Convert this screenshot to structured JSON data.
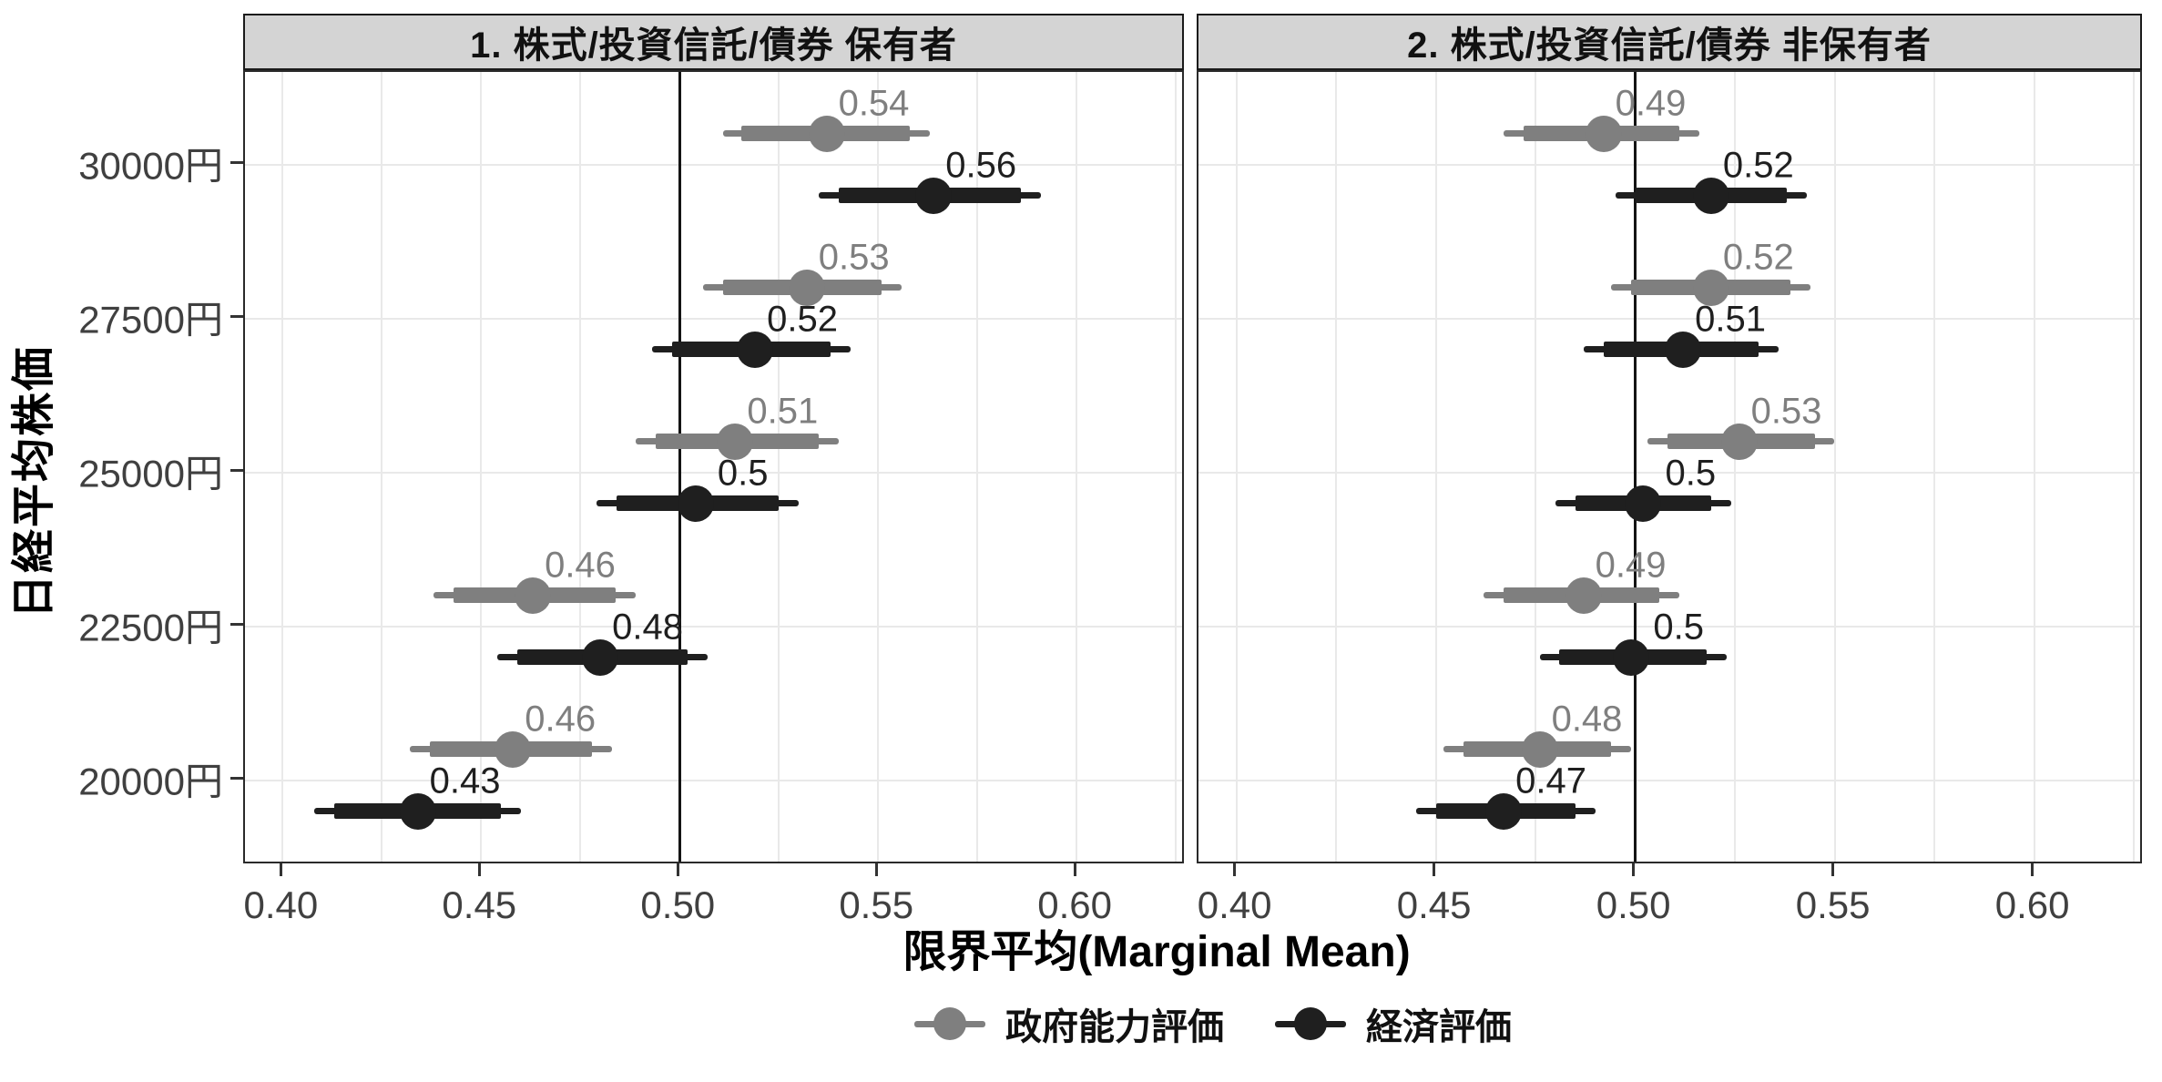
{
  "chart_data": {
    "type": "pointrange-dot-whisker",
    "x": {
      "label": "限界平均(Marginal Mean)",
      "ticks": [
        "0.40",
        "0.45",
        "0.50",
        "0.55",
        "0.60"
      ],
      "tick_values": [
        0.4,
        0.45,
        0.5,
        0.55,
        0.6
      ],
      "range": [
        0.3905,
        0.6275
      ],
      "minor_grid_step": 0.025,
      "reference_line": 0.5
    },
    "y": {
      "label": "日経平均株価",
      "categories": [
        "30000円",
        "27500円",
        "25000円",
        "22500円",
        "20000円"
      ]
    },
    "series": [
      {
        "name": "政府能力評価",
        "color": "#7f7f7f"
      },
      {
        "name": "経済評価",
        "color": "#1f1f1f"
      }
    ],
    "facets": [
      {
        "title": "1. 株式/投資信託/債券 保有者",
        "rows": [
          {
            "c": 0,
            "s": 0,
            "label": "0.54",
            "est": 0.537,
            "outer": [
              0.511,
              0.563
            ],
            "inner": [
              0.5155,
              0.558
            ]
          },
          {
            "c": 0,
            "s": 1,
            "label": "0.56",
            "est": 0.564,
            "outer": [
              0.535,
              0.591
            ],
            "inner": [
              0.54,
              0.586
            ]
          },
          {
            "c": 1,
            "s": 0,
            "label": "0.53",
            "est": 0.532,
            "outer": [
              0.506,
              0.556
            ],
            "inner": [
              0.511,
              0.551
            ]
          },
          {
            "c": 1,
            "s": 1,
            "label": "0.52",
            "est": 0.519,
            "outer": [
              0.493,
              0.543
            ],
            "inner": [
              0.498,
              0.538
            ]
          },
          {
            "c": 2,
            "s": 0,
            "label": "0.51",
            "est": 0.514,
            "outer": [
              0.489,
              0.54
            ],
            "inner": [
              0.494,
              0.535
            ]
          },
          {
            "c": 2,
            "s": 1,
            "label": "0.5",
            "est": 0.504,
            "outer": [
              0.479,
              0.53
            ],
            "inner": [
              0.484,
              0.525
            ]
          },
          {
            "c": 3,
            "s": 0,
            "label": "0.46",
            "est": 0.463,
            "outer": [
              0.438,
              0.489
            ],
            "inner": [
              0.443,
              0.484
            ]
          },
          {
            "c": 3,
            "s": 1,
            "label": "0.48",
            "est": 0.48,
            "outer": [
              0.454,
              0.507
            ],
            "inner": [
              0.459,
              0.502
            ]
          },
          {
            "c": 4,
            "s": 0,
            "label": "0.46",
            "est": 0.458,
            "outer": [
              0.432,
              0.483
            ],
            "inner": [
              0.437,
              0.478
            ]
          },
          {
            "c": 4,
            "s": 1,
            "label": "0.43",
            "est": 0.434,
            "outer": [
              0.408,
              0.46
            ],
            "inner": [
              0.413,
              0.455
            ]
          }
        ]
      },
      {
        "title": "2. 株式/投資信託/債券 非保有者",
        "rows": [
          {
            "c": 0,
            "s": 0,
            "label": "0.49",
            "est": 0.492,
            "outer": [
              0.467,
              0.516
            ],
            "inner": [
              0.472,
              0.511
            ]
          },
          {
            "c": 0,
            "s": 1,
            "label": "0.52",
            "est": 0.519,
            "outer": [
              0.495,
              0.543
            ],
            "inner": [
              0.5,
              0.538
            ]
          },
          {
            "c": 1,
            "s": 0,
            "label": "0.52",
            "est": 0.519,
            "outer": [
              0.494,
              0.544
            ],
            "inner": [
              0.499,
              0.539
            ]
          },
          {
            "c": 1,
            "s": 1,
            "label": "0.51",
            "est": 0.512,
            "outer": [
              0.487,
              0.536
            ],
            "inner": [
              0.492,
              0.531
            ]
          },
          {
            "c": 2,
            "s": 0,
            "label": "0.53",
            "est": 0.526,
            "outer": [
              0.503,
              0.55
            ],
            "inner": [
              0.508,
              0.545
            ]
          },
          {
            "c": 2,
            "s": 1,
            "label": "0.5",
            "est": 0.502,
            "outer": [
              0.48,
              0.524
            ],
            "inner": [
              0.485,
              0.519
            ]
          },
          {
            "c": 3,
            "s": 0,
            "label": "0.49",
            "est": 0.487,
            "outer": [
              0.462,
              0.511
            ],
            "inner": [
              0.467,
              0.506
            ]
          },
          {
            "c": 3,
            "s": 1,
            "label": "0.5",
            "est": 0.499,
            "outer": [
              0.476,
              0.523
            ],
            "inner": [
              0.481,
              0.518
            ]
          },
          {
            "c": 4,
            "s": 0,
            "label": "0.48",
            "est": 0.476,
            "outer": [
              0.452,
              0.499
            ],
            "inner": [
              0.457,
              0.494
            ]
          },
          {
            "c": 4,
            "s": 1,
            "label": "0.47",
            "est": 0.467,
            "outer": [
              0.445,
              0.49
            ],
            "inner": [
              0.45,
              0.485
            ]
          }
        ]
      }
    ],
    "legend": [
      {
        "label": "政府能力評価",
        "color": "#7f7f7f"
      },
      {
        "label": "経済評価",
        "color": "#1f1f1f"
      }
    ],
    "colors": {
      "series_gray": "#7f7f7f",
      "series_black": "#1f1f1f",
      "grid": "#e9e9e9",
      "strip_background": "#d4d4d4",
      "panel_border": "#2a2a2a",
      "tick_text": "#404040",
      "reference_line": "#141414"
    }
  }
}
